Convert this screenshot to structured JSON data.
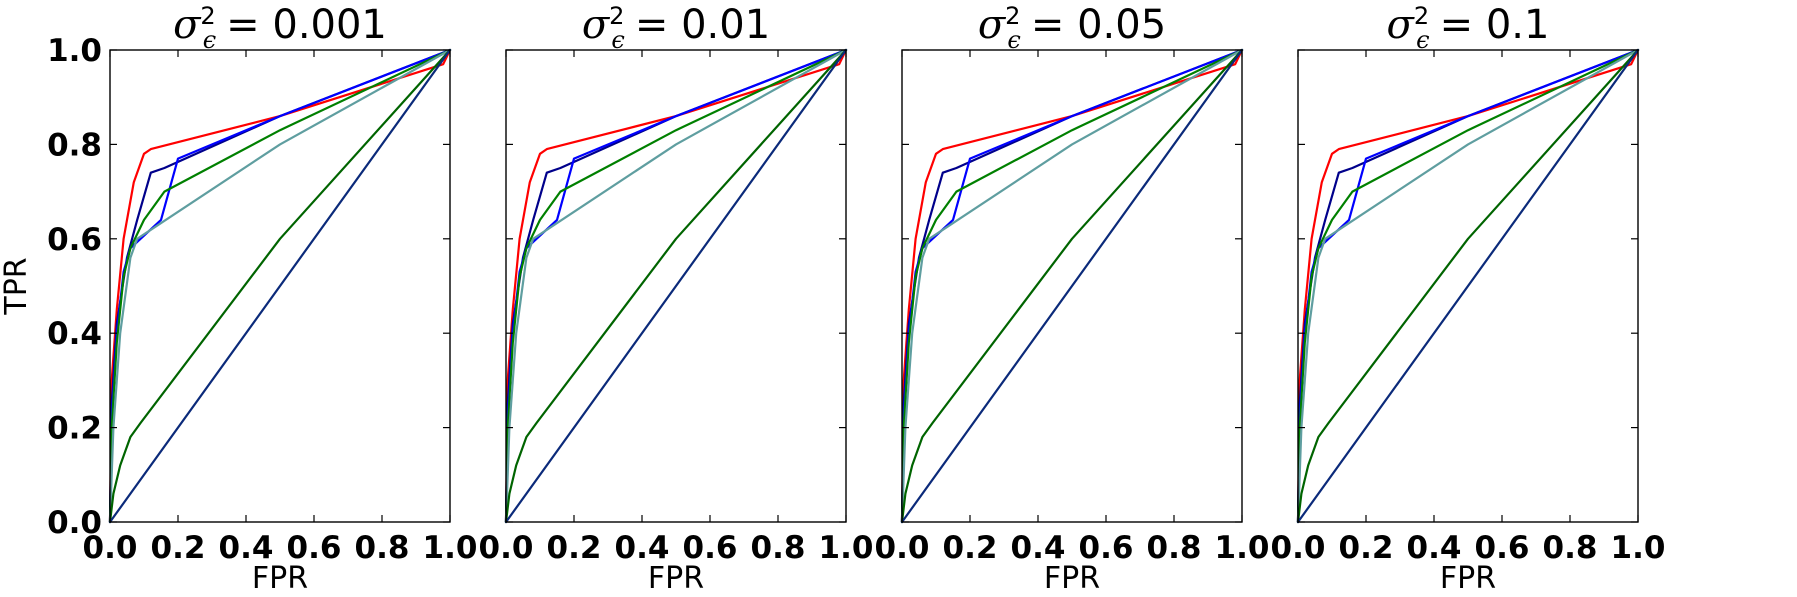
{
  "chart_data": [
    {
      "type": "line",
      "title": {
        "symbol": "σ",
        "superscript": "2",
        "subscript": "ϵ",
        "value": "= 0.001"
      },
      "xlabel": "FPR",
      "ylabel": "TPR",
      "xlim": [
        0,
        1.0
      ],
      "ylim": [
        0,
        1.0
      ],
      "grid": false,
      "xticks": [
        "0.0",
        "0.2",
        "0.4",
        "0.6",
        "0.8",
        "1.0"
      ],
      "yticks": [
        "0.0",
        "0.2",
        "0.4",
        "0.6",
        "0.8",
        "1.0"
      ],
      "series": [
        {
          "color": "#ff0000",
          "points": [
            [
              0,
              0
            ],
            [
              0.005,
              0.3
            ],
            [
              0.02,
              0.45
            ],
            [
              0.04,
              0.6
            ],
            [
              0.07,
              0.72
            ],
            [
              0.1,
              0.78
            ],
            [
              0.12,
              0.79
            ],
            [
              0.5,
              0.86
            ],
            [
              0.98,
              0.97
            ],
            [
              1,
              1
            ]
          ]
        },
        {
          "color": "#00008b",
          "points": [
            [
              0,
              0
            ],
            [
              0.005,
              0.25
            ],
            [
              0.02,
              0.42
            ],
            [
              0.05,
              0.56
            ],
            [
              0.08,
              0.64
            ],
            [
              0.12,
              0.74
            ],
            [
              0.16,
              0.75
            ],
            [
              0.5,
              0.86
            ],
            [
              1,
              1
            ]
          ]
        },
        {
          "color": "#0000ff",
          "points": [
            [
              0,
              0
            ],
            [
              0.005,
              0.22
            ],
            [
              0.02,
              0.4
            ],
            [
              0.04,
              0.53
            ],
            [
              0.06,
              0.58
            ],
            [
              0.15,
              0.64
            ],
            [
              0.2,
              0.77
            ],
            [
              0.5,
              0.86
            ],
            [
              1,
              1
            ]
          ]
        },
        {
          "color": "#008000",
          "points": [
            [
              0,
              0
            ],
            [
              0.005,
              0.2
            ],
            [
              0.02,
              0.38
            ],
            [
              0.04,
              0.52
            ],
            [
              0.06,
              0.58
            ],
            [
              0.1,
              0.64
            ],
            [
              0.16,
              0.7
            ],
            [
              0.5,
              0.83
            ],
            [
              1,
              1
            ]
          ]
        },
        {
          "color": "#5f9ea0",
          "points": [
            [
              0,
              0
            ],
            [
              0.01,
              0.2
            ],
            [
              0.03,
              0.4
            ],
            [
              0.06,
              0.56
            ],
            [
              0.08,
              0.6
            ],
            [
              0.5,
              0.8
            ],
            [
              1,
              1
            ]
          ]
        },
        {
          "color": "#006400",
          "points": [
            [
              0,
              0
            ],
            [
              0.01,
              0.06
            ],
            [
              0.03,
              0.12
            ],
            [
              0.06,
              0.18
            ],
            [
              0.09,
              0.21
            ],
            [
              0.5,
              0.6
            ],
            [
              1,
              1
            ]
          ]
        },
        {
          "color": "#0b2a7a",
          "points": [
            [
              0,
              0
            ],
            [
              1,
              1
            ]
          ]
        }
      ]
    },
    {
      "type": "line",
      "title": {
        "symbol": "σ",
        "superscript": "2",
        "subscript": "ϵ",
        "value": "= 0.01"
      },
      "xlabel": "FPR",
      "ylabel": "",
      "xlim": [
        0,
        1.0
      ],
      "ylim": [
        0,
        1.0
      ],
      "grid": false,
      "xticks": [
        "0.0",
        "0.2",
        "0.4",
        "0.6",
        "0.8",
        "1.0"
      ],
      "yticks": [],
      "series": [
        {
          "color": "#ff0000",
          "points": [
            [
              0,
              0
            ],
            [
              0.005,
              0.3
            ],
            [
              0.02,
              0.45
            ],
            [
              0.04,
              0.6
            ],
            [
              0.07,
              0.72
            ],
            [
              0.1,
              0.78
            ],
            [
              0.12,
              0.79
            ],
            [
              0.5,
              0.86
            ],
            [
              0.98,
              0.97
            ],
            [
              1,
              1
            ]
          ]
        },
        {
          "color": "#00008b",
          "points": [
            [
              0,
              0
            ],
            [
              0.005,
              0.25
            ],
            [
              0.02,
              0.42
            ],
            [
              0.05,
              0.56
            ],
            [
              0.08,
              0.64
            ],
            [
              0.12,
              0.74
            ],
            [
              0.16,
              0.75
            ],
            [
              0.5,
              0.86
            ],
            [
              1,
              1
            ]
          ]
        },
        {
          "color": "#0000ff",
          "points": [
            [
              0,
              0
            ],
            [
              0.005,
              0.22
            ],
            [
              0.02,
              0.4
            ],
            [
              0.04,
              0.53
            ],
            [
              0.06,
              0.58
            ],
            [
              0.15,
              0.64
            ],
            [
              0.2,
              0.77
            ],
            [
              0.5,
              0.86
            ],
            [
              1,
              1
            ]
          ]
        },
        {
          "color": "#008000",
          "points": [
            [
              0,
              0
            ],
            [
              0.005,
              0.2
            ],
            [
              0.02,
              0.38
            ],
            [
              0.04,
              0.52
            ],
            [
              0.06,
              0.58
            ],
            [
              0.1,
              0.64
            ],
            [
              0.16,
              0.7
            ],
            [
              0.5,
              0.83
            ],
            [
              1,
              1
            ]
          ]
        },
        {
          "color": "#5f9ea0",
          "points": [
            [
              0,
              0
            ],
            [
              0.01,
              0.2
            ],
            [
              0.03,
              0.4
            ],
            [
              0.06,
              0.56
            ],
            [
              0.08,
              0.6
            ],
            [
              0.5,
              0.8
            ],
            [
              1,
              1
            ]
          ]
        },
        {
          "color": "#006400",
          "points": [
            [
              0,
              0
            ],
            [
              0.01,
              0.06
            ],
            [
              0.03,
              0.12
            ],
            [
              0.06,
              0.18
            ],
            [
              0.09,
              0.21
            ],
            [
              0.5,
              0.6
            ],
            [
              1,
              1
            ]
          ]
        },
        {
          "color": "#0b2a7a",
          "points": [
            [
              0,
              0
            ],
            [
              1,
              1
            ]
          ]
        }
      ]
    },
    {
      "type": "line",
      "title": {
        "symbol": "σ",
        "superscript": "2",
        "subscript": "ϵ",
        "value": "= 0.05"
      },
      "xlabel": "FPR",
      "ylabel": "",
      "xlim": [
        0,
        1.0
      ],
      "ylim": [
        0,
        1.0
      ],
      "grid": false,
      "xticks": [
        "0.0",
        "0.2",
        "0.4",
        "0.6",
        "0.8",
        "1.0"
      ],
      "yticks": [],
      "series": [
        {
          "color": "#ff0000",
          "points": [
            [
              0,
              0
            ],
            [
              0.005,
              0.3
            ],
            [
              0.02,
              0.45
            ],
            [
              0.04,
              0.6
            ],
            [
              0.07,
              0.72
            ],
            [
              0.1,
              0.78
            ],
            [
              0.12,
              0.79
            ],
            [
              0.5,
              0.86
            ],
            [
              0.98,
              0.97
            ],
            [
              1,
              1
            ]
          ]
        },
        {
          "color": "#00008b",
          "points": [
            [
              0,
              0
            ],
            [
              0.005,
              0.25
            ],
            [
              0.02,
              0.42
            ],
            [
              0.05,
              0.56
            ],
            [
              0.08,
              0.64
            ],
            [
              0.12,
              0.74
            ],
            [
              0.16,
              0.75
            ],
            [
              0.5,
              0.86
            ],
            [
              1,
              1
            ]
          ]
        },
        {
          "color": "#0000ff",
          "points": [
            [
              0,
              0
            ],
            [
              0.005,
              0.22
            ],
            [
              0.02,
              0.4
            ],
            [
              0.04,
              0.53
            ],
            [
              0.06,
              0.58
            ],
            [
              0.15,
              0.64
            ],
            [
              0.2,
              0.77
            ],
            [
              0.5,
              0.86
            ],
            [
              1,
              1
            ]
          ]
        },
        {
          "color": "#008000",
          "points": [
            [
              0,
              0
            ],
            [
              0.005,
              0.2
            ],
            [
              0.02,
              0.38
            ],
            [
              0.04,
              0.52
            ],
            [
              0.06,
              0.58
            ],
            [
              0.1,
              0.64
            ],
            [
              0.16,
              0.7
            ],
            [
              0.5,
              0.83
            ],
            [
              1,
              1
            ]
          ]
        },
        {
          "color": "#5f9ea0",
          "points": [
            [
              0,
              0
            ],
            [
              0.01,
              0.2
            ],
            [
              0.03,
              0.4
            ],
            [
              0.06,
              0.56
            ],
            [
              0.08,
              0.6
            ],
            [
              0.5,
              0.8
            ],
            [
              1,
              1
            ]
          ]
        },
        {
          "color": "#006400",
          "points": [
            [
              0,
              0
            ],
            [
              0.01,
              0.06
            ],
            [
              0.03,
              0.12
            ],
            [
              0.06,
              0.18
            ],
            [
              0.09,
              0.21
            ],
            [
              0.5,
              0.6
            ],
            [
              1,
              1
            ]
          ]
        },
        {
          "color": "#0b2a7a",
          "points": [
            [
              0,
              0
            ],
            [
              1,
              1
            ]
          ]
        }
      ]
    },
    {
      "type": "line",
      "title": {
        "symbol": "σ",
        "superscript": "2",
        "subscript": "ϵ",
        "value": "= 0.1"
      },
      "xlabel": "FPR",
      "ylabel": "",
      "xlim": [
        0,
        1.0
      ],
      "ylim": [
        0,
        1.0
      ],
      "grid": false,
      "xticks": [
        "0.0",
        "0.2",
        "0.4",
        "0.6",
        "0.8",
        "1.0"
      ],
      "yticks": [],
      "series": [
        {
          "color": "#ff0000",
          "points": [
            [
              0,
              0
            ],
            [
              0.005,
              0.3
            ],
            [
              0.02,
              0.45
            ],
            [
              0.04,
              0.6
            ],
            [
              0.07,
              0.72
            ],
            [
              0.1,
              0.78
            ],
            [
              0.12,
              0.79
            ],
            [
              0.5,
              0.86
            ],
            [
              0.98,
              0.97
            ],
            [
              1,
              1
            ]
          ]
        },
        {
          "color": "#00008b",
          "points": [
            [
              0,
              0
            ],
            [
              0.005,
              0.25
            ],
            [
              0.02,
              0.42
            ],
            [
              0.05,
              0.56
            ],
            [
              0.08,
              0.64
            ],
            [
              0.12,
              0.74
            ],
            [
              0.16,
              0.75
            ],
            [
              0.5,
              0.86
            ],
            [
              1,
              1
            ]
          ]
        },
        {
          "color": "#0000ff",
          "points": [
            [
              0,
              0
            ],
            [
              0.005,
              0.22
            ],
            [
              0.02,
              0.4
            ],
            [
              0.04,
              0.53
            ],
            [
              0.06,
              0.58
            ],
            [
              0.15,
              0.64
            ],
            [
              0.2,
              0.77
            ],
            [
              0.5,
              0.86
            ],
            [
              1,
              1
            ]
          ]
        },
        {
          "color": "#008000",
          "points": [
            [
              0,
              0
            ],
            [
              0.005,
              0.2
            ],
            [
              0.02,
              0.38
            ],
            [
              0.04,
              0.52
            ],
            [
              0.06,
              0.58
            ],
            [
              0.1,
              0.64
            ],
            [
              0.16,
              0.7
            ],
            [
              0.5,
              0.83
            ],
            [
              1,
              1
            ]
          ]
        },
        {
          "color": "#5f9ea0",
          "points": [
            [
              0,
              0
            ],
            [
              0.01,
              0.2
            ],
            [
              0.03,
              0.4
            ],
            [
              0.06,
              0.56
            ],
            [
              0.08,
              0.6
            ],
            [
              0.5,
              0.8
            ],
            [
              1,
              1
            ]
          ]
        },
        {
          "color": "#006400",
          "points": [
            [
              0,
              0
            ],
            [
              0.01,
              0.06
            ],
            [
              0.03,
              0.12
            ],
            [
              0.06,
              0.18
            ],
            [
              0.09,
              0.21
            ],
            [
              0.5,
              0.6
            ],
            [
              1,
              1
            ]
          ]
        },
        {
          "color": "#0b2a7a",
          "points": [
            [
              0,
              0
            ],
            [
              1,
              1
            ]
          ]
        }
      ]
    }
  ]
}
